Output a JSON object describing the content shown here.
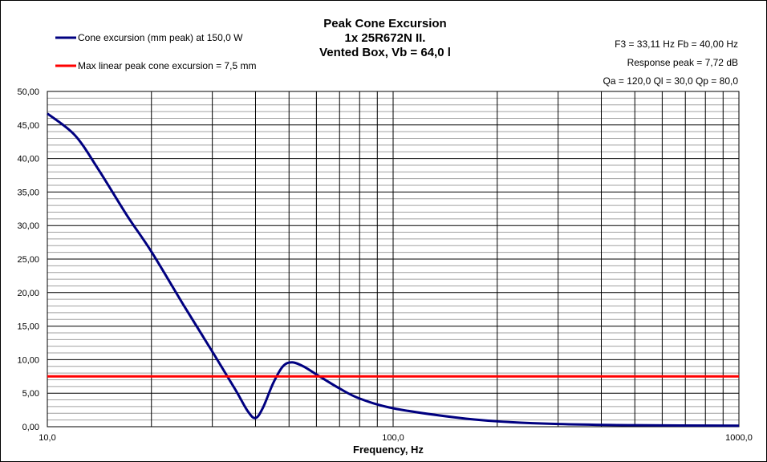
{
  "chart_data": {
    "type": "line",
    "title": [
      "Peak Cone Excursion",
      "1x 25R672N II.",
      "Vented Box, Vb = 64,0 l"
    ],
    "xlabel": "Frequency, Hz",
    "ylabel": "",
    "xscale": "log",
    "xlim": [
      10,
      1000
    ],
    "ylim": [
      0,
      50
    ],
    "xticks": [
      10,
      100,
      1000
    ],
    "xtick_labels": [
      "10,0",
      "100,0",
      "1000,0"
    ],
    "yticks": [
      0,
      5,
      10,
      15,
      20,
      25,
      30,
      35,
      40,
      45,
      50
    ],
    "ytick_labels": [
      "0,00",
      "5,00",
      "10,00",
      "15,00",
      "20,00",
      "25,00",
      "30,00",
      "35,00",
      "40,00",
      "45,00",
      "50,00"
    ],
    "grid": true,
    "legend_position": "top-left",
    "series": [
      {
        "name": "Cone excursion (mm peak) at 150,0 W",
        "color": "#000080",
        "x": [
          10,
          12,
          14,
          17,
          20,
          25,
          30,
          35,
          38,
          40,
          42,
          45,
          48,
          51,
          55,
          60,
          70,
          80,
          100,
          150,
          200,
          300,
          500,
          1000
        ],
        "y": [
          46.7,
          43.5,
          38.5,
          31.5,
          26.1,
          17.8,
          11.2,
          5.5,
          2.3,
          1.3,
          2.8,
          6.5,
          9.0,
          9.6,
          9.0,
          7.8,
          5.7,
          4.2,
          2.75,
          1.4,
          0.8,
          0.4,
          0.22,
          0.15
        ]
      },
      {
        "name": "Max linear peak cone excursion = 7,5 mm",
        "color": "#ff0000",
        "x": [
          10,
          1000
        ],
        "y": [
          7.5,
          7.5
        ]
      }
    ],
    "annotations": [
      "F3 = 33,11 Hz  Fb = 40,00 Hz",
      "Response  peak = 7,72 dB",
      "Qa = 120,0  Ql = 30,0  Qp = 80,0"
    ]
  }
}
